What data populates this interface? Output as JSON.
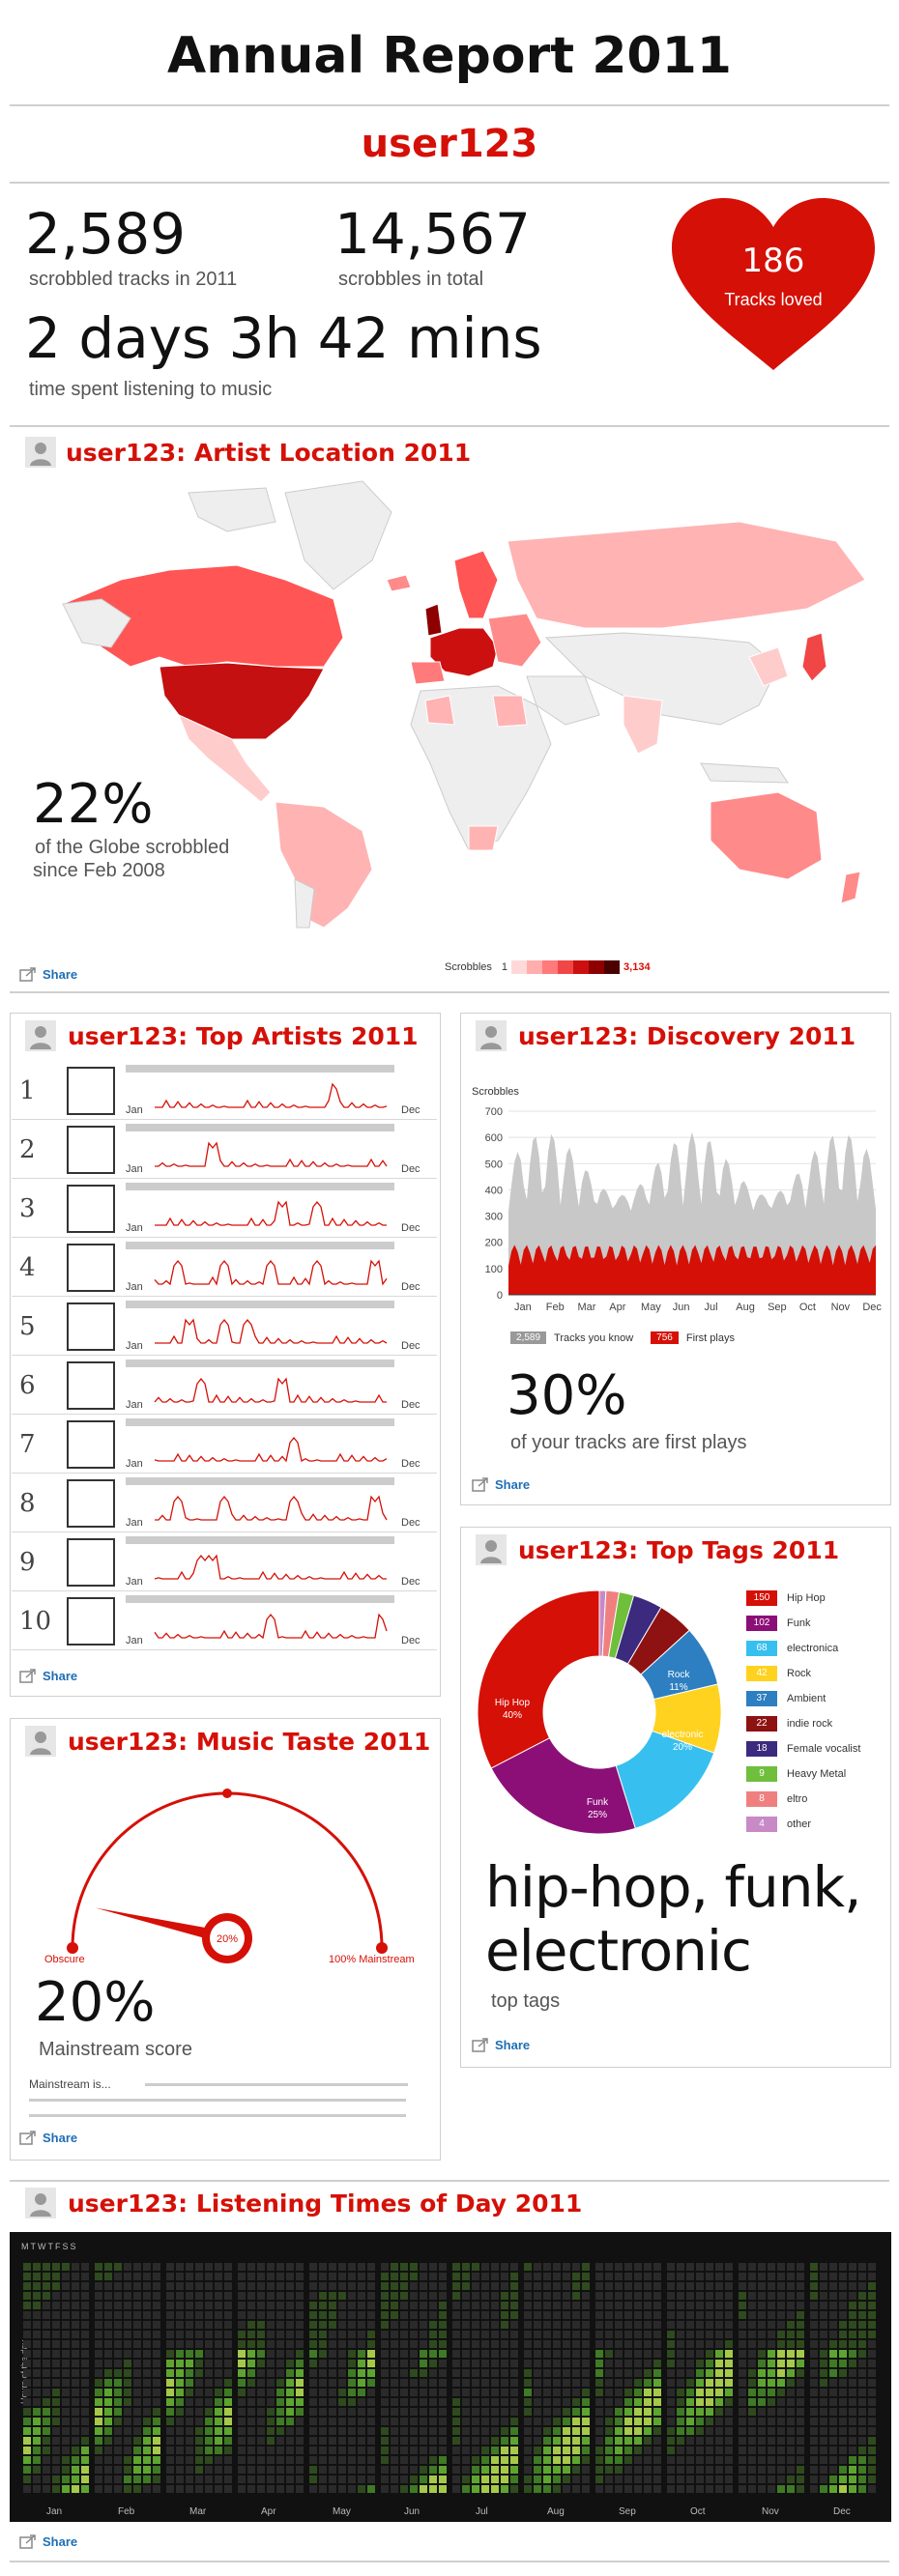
{
  "header": {
    "title": "Annual Report 2011",
    "username": "user123"
  },
  "stats": {
    "scrobbled_2011": "2,589",
    "scrobbled_2011_label": "scrobbled tracks in 2011",
    "scrobbles_total": "14,567",
    "scrobbles_total_label": "scrobbles in total",
    "time_spent": "2 days 3h 42 mins",
    "time_spent_label": "time spent listening to music",
    "loved": "186",
    "loved_label": "Tracks loved"
  },
  "share_label": "Share",
  "artist_location": {
    "title": "user123: Artist Location 2011",
    "percent": "22%",
    "caption_line1": "of the Globe scrobbled",
    "caption_line2": "since Feb 2008",
    "legend_label": "Scrobbles",
    "legend_min": "1",
    "legend_max": "3,134",
    "colors": [
      "#ffd9d9",
      "#ffadad",
      "#ff7a7a",
      "#f04646",
      "#cc1010",
      "#8e0000",
      "#4a0000"
    ]
  },
  "top_artists": {
    "title": "user123: Top Artists 2011",
    "month_start": "Jan",
    "month_end": "Dec",
    "ranks": [
      "1",
      "2",
      "3",
      "4",
      "5",
      "6",
      "7",
      "8",
      "9",
      "10"
    ]
  },
  "discovery": {
    "title": "user123: Discovery 2011",
    "y_label": "Scrobbles",
    "y_ticks": [
      "700",
      "600",
      "500",
      "400",
      "300",
      "200",
      "100",
      "0"
    ],
    "months": [
      "Jan",
      "Feb",
      "Mar",
      "Apr",
      "May",
      "Jun",
      "Jul",
      "Aug",
      "Sep",
      "Oct",
      "Nov",
      "Dec"
    ],
    "known_count": "2,589",
    "known_label": "Tracks you know",
    "first_count": "756",
    "first_label": "First plays",
    "percent": "30%",
    "caption": "of your tracks are first plays",
    "colors": {
      "known": "#c8c8c8",
      "first": "#d51007"
    }
  },
  "music_taste": {
    "title": "user123: Music Taste 2011",
    "gauge_value": "20%",
    "left_label": "Obscure",
    "right_label": "100% Mainstream",
    "percent": "20%",
    "caption": "Mainstream score",
    "mainstream_is": "Mainstream is...",
    "score": 0.2
  },
  "top_tags": {
    "title": "user123: Top Tags 2011",
    "legend": [
      {
        "count": "150",
        "label": "Hip Hop",
        "color": "#d51007"
      },
      {
        "count": "102",
        "label": "Funk",
        "color": "#8c0f78"
      },
      {
        "count": "68",
        "label": "electronica",
        "color": "#37c0ef"
      },
      {
        "count": "42",
        "label": "Rock",
        "color": "#ffd21f"
      },
      {
        "count": "37",
        "label": "Ambient",
        "color": "#2d7fc1"
      },
      {
        "count": "22",
        "label": "indie rock",
        "color": "#8e1212"
      },
      {
        "count": "18",
        "label": "Female vocalist",
        "color": "#3c2a7e"
      },
      {
        "count": "9",
        "label": "Heavy Metal",
        "color": "#6fbf3c"
      },
      {
        "count": "8",
        "label": "eltro",
        "color": "#f08080"
      },
      {
        "count": "4",
        "label": "other",
        "color": "#c78ac7"
      }
    ],
    "slice_labels": {
      "hiphop": "Hip Hop",
      "hiphop_pct": "40%",
      "funk": "Funk",
      "funk_pct": "25%",
      "electronic": "electronic",
      "electronic_pct": "20%",
      "rock": "Rock",
      "rock_pct": "11%"
    },
    "summary_line1": "hip-hop, funk,",
    "summary_line2": "electronic",
    "caption": "top tags"
  },
  "listening_times": {
    "title": "user123: Listening Times of Day 2011",
    "weekday_letters": "MTWTFSS",
    "y_axis_label": "Hours of the day",
    "months": [
      "Jan",
      "Feb",
      "Mar",
      "Apr",
      "May",
      "Jun",
      "Jul",
      "Aug",
      "Sep",
      "Oct",
      "Nov",
      "Dec"
    ]
  }
}
